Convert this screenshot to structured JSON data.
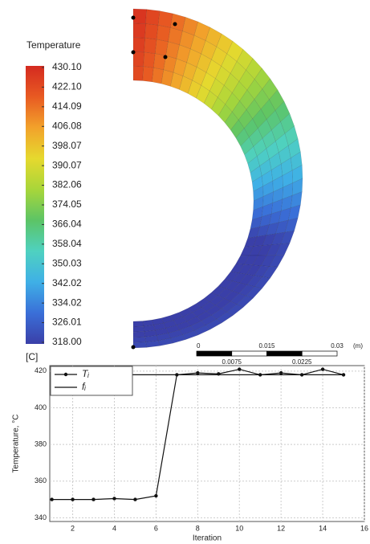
{
  "chart_data": [
    {
      "type": "contour",
      "colorbar_title": "Temperature",
      "colorbar_unit": "[C]",
      "colorbar_ticks": [
        {
          "value": 430.1,
          "label": "430.10"
        },
        {
          "value": 422.1,
          "label": "422.10"
        },
        414.09,
        406.08,
        398.07,
        390.07,
        382.06,
        374.05,
        366.04,
        358.04,
        350.03,
        342.02,
        334.02,
        326.01,
        {
          "value": 318,
          "label": "318.00"
        }
      ],
      "colormap": [
        "#3a3fa8",
        "#3a6fd8",
        "#3fb0e6",
        "#4fd1c0",
        "#5cc466",
        "#a8d63a",
        "#e6d92e",
        "#f2a22b",
        "#e85a22",
        "#d42a20"
      ],
      "scale_bar": {
        "ticks": [
          0,
          0.015,
          0.03
        ],
        "minor_ticks": [
          0.0075,
          0.0225
        ],
        "unit": "(m)"
      }
    },
    {
      "type": "line",
      "xlabel": "Iteration",
      "ylabel": "Temperature, °C",
      "x": [
        1,
        2,
        3,
        4,
        5,
        6,
        7,
        8,
        9,
        10,
        11,
        12,
        13,
        14,
        15
      ],
      "series": [
        {
          "name": "Tᵢ",
          "color": "#111111",
          "marker": "circle",
          "values": [
            350,
            350,
            350,
            350.5,
            350,
            352,
            418,
            419,
            418.5,
            421,
            418,
            419,
            418,
            421,
            418
          ]
        },
        {
          "name": "fᵢ",
          "color": "#111111",
          "marker": "none",
          "values": [
            418,
            418,
            418,
            418,
            418,
            418,
            418,
            418,
            418,
            418,
            418,
            418,
            418,
            418,
            418
          ]
        }
      ],
      "xlim": [
        0.9,
        16
      ],
      "ylim": [
        338,
        423
      ],
      "xticks": [
        2,
        4,
        6,
        8,
        10,
        12,
        14,
        16
      ],
      "yticks": [
        340,
        360,
        380,
        400,
        420
      ],
      "grid": true,
      "legend": "upper left"
    }
  ]
}
